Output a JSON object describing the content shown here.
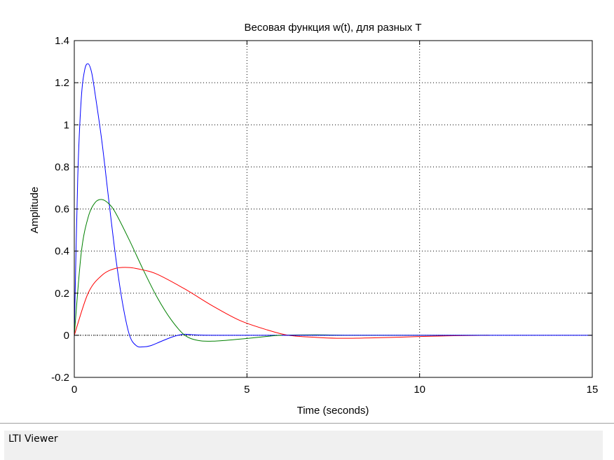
{
  "chart_data": {
    "type": "line",
    "title": "Весовая функция w(t), для разных T",
    "xlabel": "Time (seconds)",
    "ylabel": "Amplitude",
    "xlim": [
      0,
      15
    ],
    "ylim": [
      -0.2,
      1.4
    ],
    "xticks": [
      0,
      5,
      10,
      15
    ],
    "yticks": [
      -0.2,
      0,
      0.2,
      0.4,
      0.6,
      0.8,
      1,
      1.2,
      1.4
    ],
    "grid": true,
    "series": [
      {
        "color": "#0000ff",
        "x": [
          0,
          0.1,
          0.2,
          0.3,
          0.4,
          0.5,
          0.6,
          0.8,
          1.0,
          1.2,
          1.4,
          1.6,
          1.8,
          2.0,
          2.2,
          2.5,
          2.8,
          3.0,
          3.2,
          3.5,
          4.0,
          5.0,
          6.0
        ],
        "y": [
          0,
          0.75,
          1.12,
          1.26,
          1.29,
          1.25,
          1.15,
          0.92,
          0.64,
          0.37,
          0.15,
          0.0,
          -0.05,
          -0.055,
          -0.05,
          -0.03,
          -0.01,
          0.0,
          0.005,
          0.002,
          0.0,
          0.0,
          0.0
        ]
      },
      {
        "color": "#008000",
        "x": [
          0,
          0.2,
          0.4,
          0.6,
          0.8,
          1.0,
          1.2,
          1.6,
          2.0,
          2.4,
          2.8,
          3.2,
          3.6,
          4.0,
          4.4,
          5.0,
          5.6,
          6.0,
          7.0,
          8.0,
          10.0,
          12.0
        ],
        "y": [
          0,
          0.39,
          0.56,
          0.63,
          0.645,
          0.625,
          0.58,
          0.45,
          0.31,
          0.18,
          0.075,
          0.0,
          -0.025,
          -0.028,
          -0.024,
          -0.015,
          -0.005,
          0.0,
          0.002,
          0.0,
          0.0,
          0.0
        ]
      },
      {
        "color": "#ff0000",
        "x": [
          0,
          0.4,
          0.8,
          1.2,
          1.6,
          2.0,
          2.4,
          3.2,
          4.0,
          4.8,
          5.6,
          6.2,
          7.0,
          7.6,
          8.4,
          9.2,
          10.0,
          11.0,
          12.0
        ],
        "y": [
          0,
          0.2,
          0.285,
          0.318,
          0.322,
          0.31,
          0.29,
          0.22,
          0.14,
          0.07,
          0.025,
          0.0,
          -0.01,
          -0.014,
          -0.013,
          -0.01,
          -0.006,
          -0.002,
          0.0
        ]
      }
    ]
  },
  "status_bar": {
    "text": "LTI Viewer"
  }
}
